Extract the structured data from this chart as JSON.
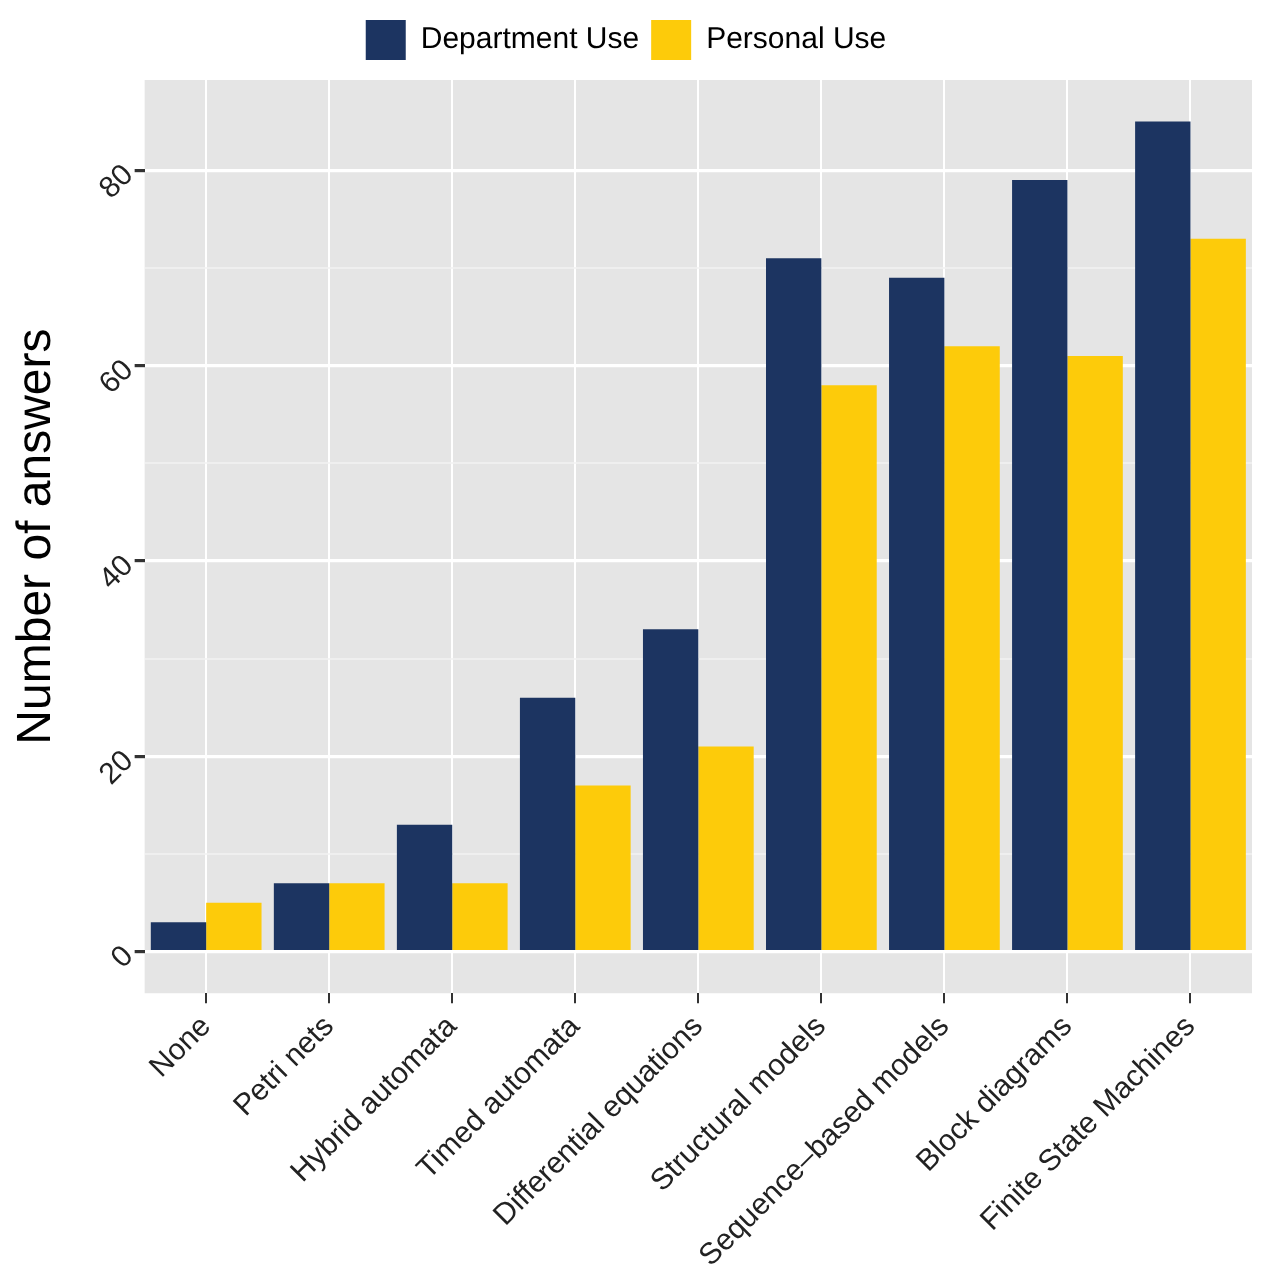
{
  "chart_data": {
    "type": "bar",
    "ylabel": "Number of answers",
    "categories": [
      "None",
      "Petri nets",
      "Hybrid automata",
      "Timed automata",
      "Differential equations",
      "Structural models",
      "Sequence–based models",
      "Block diagrams",
      "Finite State Machines"
    ],
    "series": [
      {
        "name": "Department Use",
        "color": "#1c3461",
        "values": [
          3,
          7,
          13,
          26,
          33,
          71,
          69,
          79,
          85
        ]
      },
      {
        "name": "Personal Use",
        "color": "#fdcb0a",
        "values": [
          5,
          7,
          7,
          17,
          21,
          58,
          62,
          61,
          73
        ]
      }
    ],
    "ylim": [
      -4.25,
      89.25
    ],
    "yticks": [
      0,
      {
        "value": 10,
        "label": null
      },
      20,
      {
        "value": 30,
        "label": null
      },
      40,
      {
        "value": 50,
        "label": null
      },
      60,
      {
        "value": 70,
        "label": null
      },
      80
    ],
    "grid": true,
    "legend": "top"
  }
}
